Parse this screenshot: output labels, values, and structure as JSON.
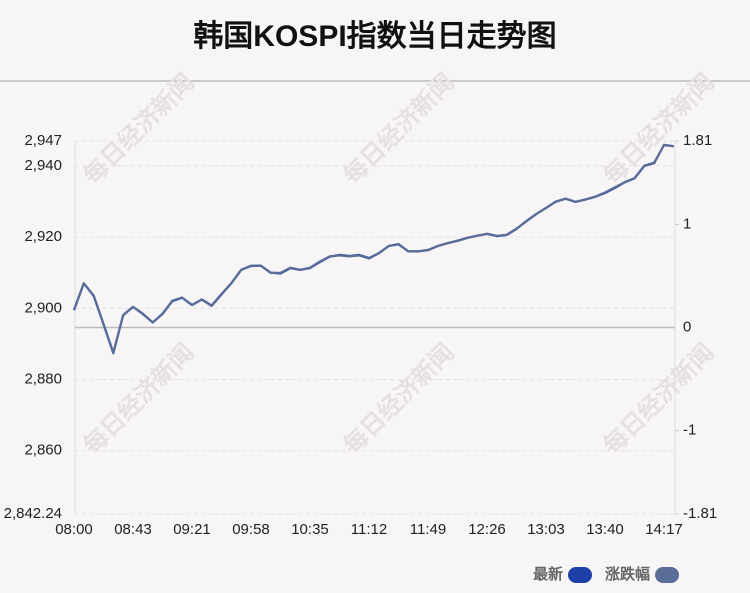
{
  "chart_data": {
    "type": "line",
    "title": "韩国KOSPI指数当日走势图",
    "watermark": "每日经济新闻",
    "categories": [
      "08:00",
      null,
      null,
      null,
      null,
      null,
      "08:43",
      null,
      null,
      null,
      null,
      null,
      "09:21",
      null,
      null,
      null,
      null,
      null,
      "09:58",
      null,
      null,
      null,
      null,
      null,
      "10:35",
      null,
      null,
      null,
      null,
      null,
      "11:12",
      null,
      null,
      null,
      null,
      null,
      "11:49",
      null,
      null,
      null,
      null,
      null,
      "12:26",
      null,
      null,
      null,
      null,
      null,
      "13:03",
      null,
      null,
      null,
      null,
      null,
      "13:40",
      null,
      null,
      null,
      null,
      null,
      "14:17",
      null
    ],
    "series": [
      {
        "name": "最新",
        "color": "#1f40a8",
        "values": [
          2899.5,
          2907,
          2903.5,
          2895.6,
          2887.5,
          2898.1,
          2900.4,
          2898.5,
          2896,
          2898.5,
          2902,
          2903,
          2900.9,
          2902.5,
          2900.8,
          2904,
          2907,
          2910.8,
          2911.9,
          2912,
          2910,
          2909.8,
          2911.3,
          2910.8,
          2911.3,
          2913,
          2914.5,
          2915,
          2914.7,
          2915,
          2914.1,
          2915.5,
          2917.5,
          2918,
          2916,
          2916,
          2916.4,
          2917.5,
          2918.3,
          2919,
          2919.8,
          2920.4,
          2920.9,
          2920.3,
          2920.6,
          2922.3,
          2924.5,
          2926.5,
          2928.2,
          2930,
          2930.8,
          2929.9,
          2930.6,
          2931.3,
          2932.4,
          2933.8,
          2935.4,
          2936.5,
          2940,
          2940.8,
          2945.9,
          2945.5
        ]
      },
      {
        "name": "涨跌幅",
        "color": "#5a6d96",
        "axis": "y2",
        "values": [
          0.17,
          0.43,
          0.31,
          0.03,
          -0.25,
          0.12,
          0.2,
          0.13,
          0.05,
          0.13,
          0.26,
          0.29,
          0.22,
          0.27,
          0.21,
          0.32,
          0.43,
          0.56,
          0.6,
          0.6,
          0.53,
          0.53,
          0.58,
          0.56,
          0.58,
          0.64,
          0.69,
          0.7,
          0.69,
          0.7,
          0.67,
          0.72,
          0.79,
          0.81,
          0.74,
          0.74,
          0.75,
          0.79,
          0.82,
          0.84,
          0.87,
          0.89,
          0.91,
          0.89,
          0.9,
          0.96,
          1.03,
          1.1,
          1.16,
          1.22,
          1.25,
          1.22,
          1.24,
          1.27,
          1.31,
          1.36,
          1.41,
          1.45,
          1.57,
          1.6,
          1.77,
          1.76
        ]
      }
    ],
    "ylim": [
      2842.24,
      2947
    ],
    "yticks": [
      {
        "value": 2842.24,
        "label": "2,842.24"
      },
      {
        "value": 2860,
        "label": "2,860"
      },
      {
        "value": 2880,
        "label": "2,880"
      },
      {
        "value": 2900,
        "label": "2,900"
      },
      {
        "value": 2920,
        "label": "2,920"
      },
      {
        "value": 2940,
        "label": "2,940"
      },
      {
        "value": 2947,
        "label": "2,947"
      }
    ],
    "y2lim": [
      -1.81,
      1.81
    ],
    "y2ticks": [
      -1.81,
      -1,
      0,
      1,
      1.81
    ],
    "grid": true,
    "legend": "bottom-right"
  }
}
